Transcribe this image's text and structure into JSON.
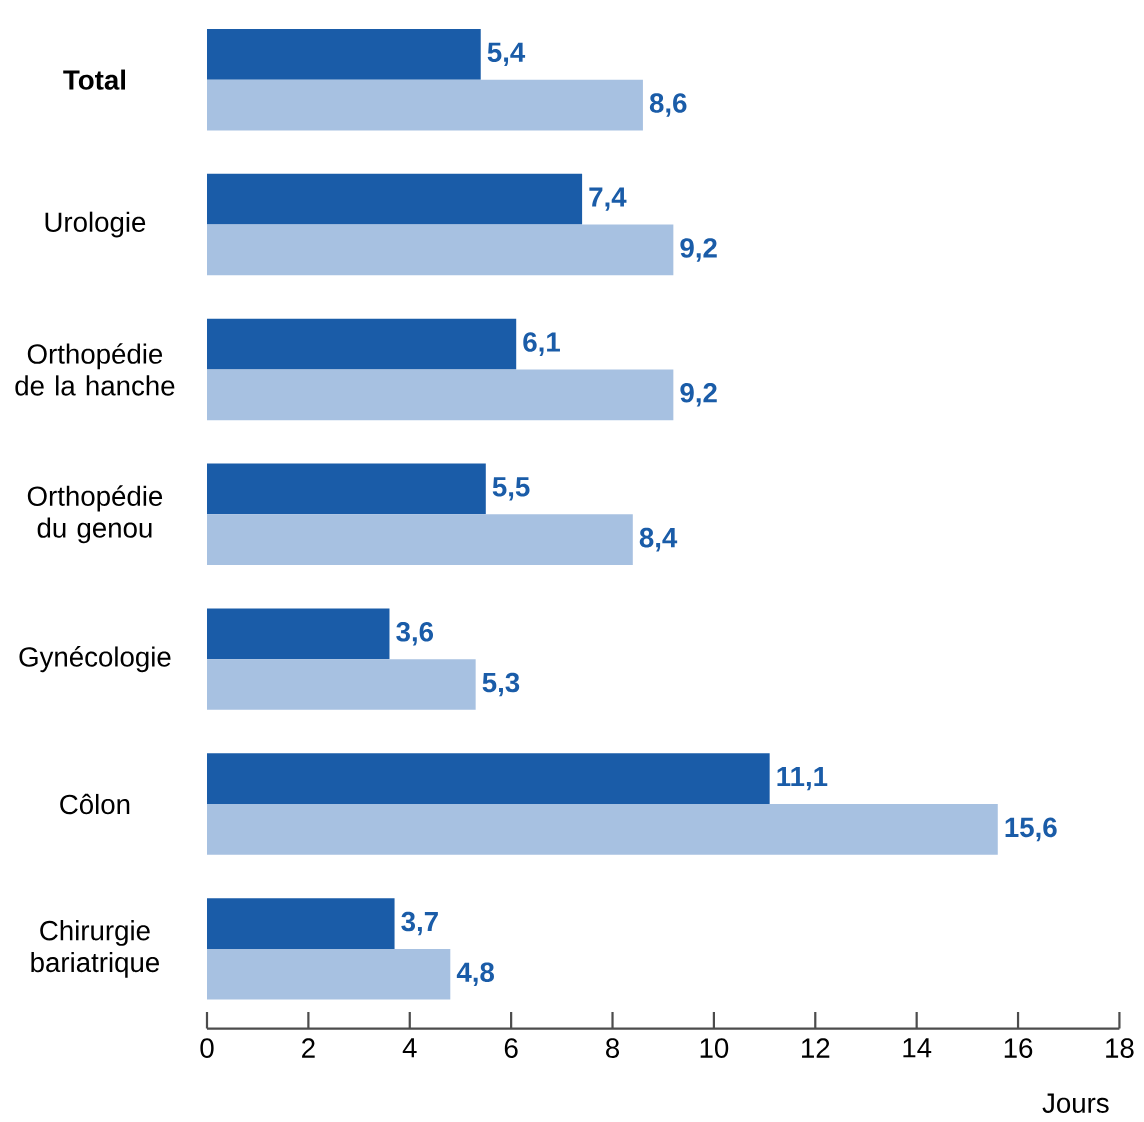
{
  "chart_data": {
    "type": "bar",
    "orientation": "horizontal",
    "xlabel": "Jours",
    "categories": [
      "**Total**",
      "Urologie",
      "Orthopédie de la hanche",
      "Orthopédie du genou",
      "Gynécologie",
      "Côlon",
      "Chirurgie bariatrique"
    ],
    "series": [
      {
        "color": "#1a5ca8",
        "values": [
          5.4,
          7.4,
          6.1,
          5.5,
          3.6,
          11.1,
          3.7
        ],
        "value_labels": [
          "5,4",
          "7,4",
          "6,1",
          "5,5",
          "3,6",
          "11,1",
          "3,7"
        ]
      },
      {
        "color": "#a7c1e1",
        "values": [
          8.6,
          9.2,
          9.2,
          8.4,
          5.3,
          15.6,
          4.8
        ],
        "value_labels": [
          "8,6",
          "9,2",
          "9,2",
          "8,4",
          "5,3",
          "15,6",
          "4,8"
        ]
      }
    ],
    "xlim": [
      0,
      18
    ],
    "xticks": [
      0,
      2,
      4,
      6,
      8,
      10,
      12,
      14,
      16,
      18
    ]
  }
}
